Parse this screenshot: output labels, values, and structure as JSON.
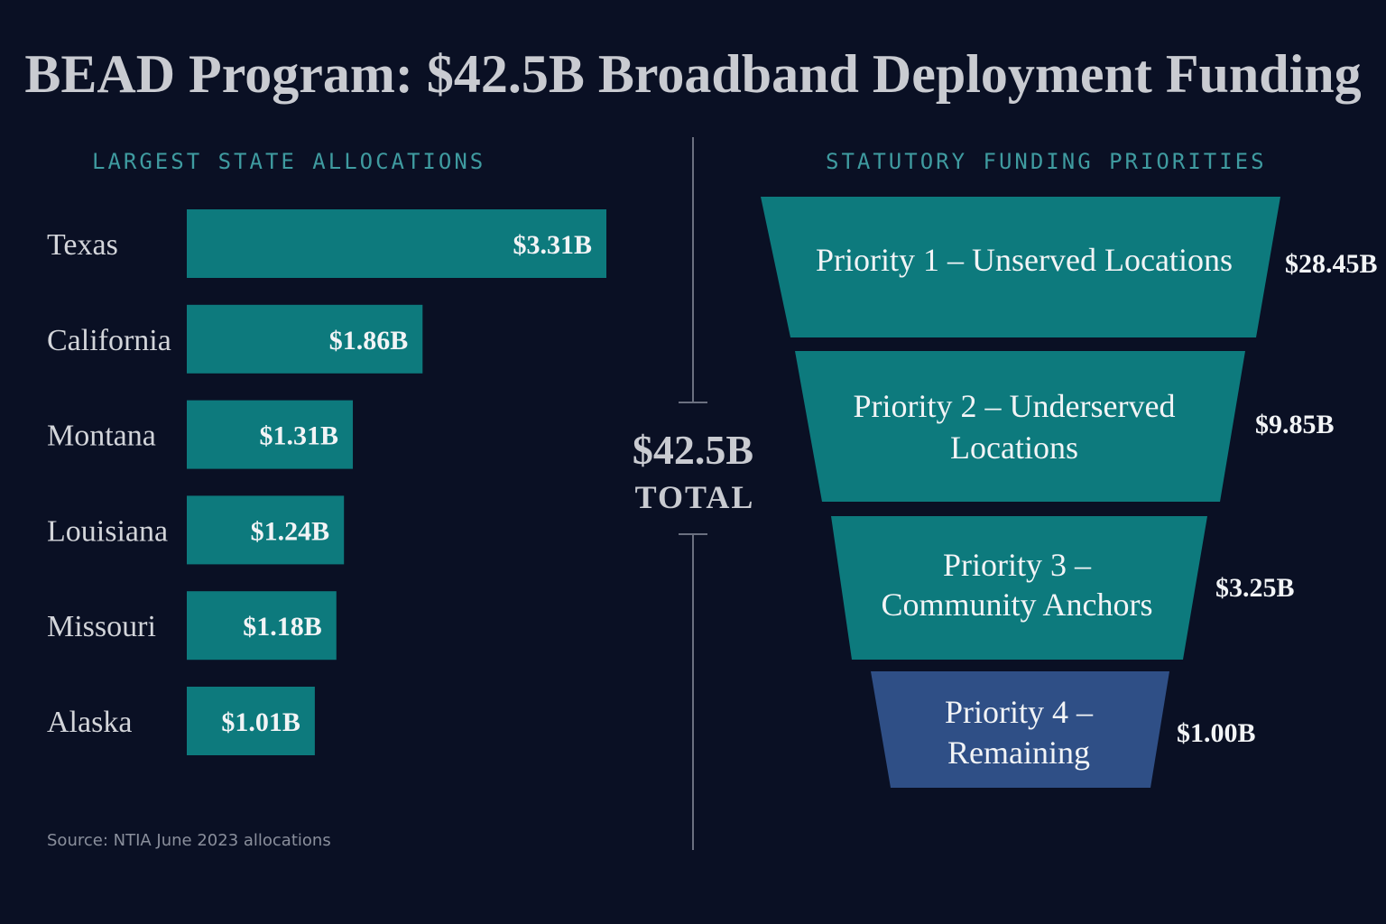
{
  "title": "BEAD Program: $42.5B Broadband Deployment Funding",
  "source": "Source: NTIA June 2023 allocations",
  "total": {
    "value": "$42.5B",
    "label": "TOTAL"
  },
  "colors": {
    "background": "#0a1024",
    "teal": "#0d7a7d",
    "navy": "#2f4f86",
    "label_accent": "#3f9ba0"
  },
  "chart_data": [
    {
      "type": "bar",
      "orientation": "horizontal",
      "title": "LARGEST STATE ALLOCATIONS",
      "categories": [
        "Texas",
        "California",
        "Montana",
        "Louisiana",
        "Missouri",
        "Alaska"
      ],
      "values": [
        3.31,
        1.86,
        1.31,
        1.24,
        1.18,
        1.01
      ],
      "value_labels": [
        "$3.31B",
        "$1.86B",
        "$1.31B",
        "$1.24B",
        "$1.18B",
        "$1.01B"
      ],
      "unit": "$B"
    },
    {
      "type": "funnel",
      "title": "STATUTORY FUNDING PRIORITIES",
      "stages": [
        {
          "label_lines": [
            "Priority 1 – Unserved Locations"
          ],
          "value": 28.45,
          "value_label": "$28.45B",
          "color": "#0d7a7d"
        },
        {
          "label_lines": [
            "Priority 2 – Underserved",
            "Locations"
          ],
          "value": 9.85,
          "value_label": "$9.85B",
          "color": "#0d7a7d"
        },
        {
          "label_lines": [
            "Priority 3 –",
            "Community Anchors"
          ],
          "value": 3.25,
          "value_label": "$3.25B",
          "color": "#0d7a7d"
        },
        {
          "label_lines": [
            "Priority 4 –",
            "Remaining"
          ],
          "value": 1.0,
          "value_label": "$1.00B",
          "color": "#2f4f86"
        }
      ],
      "unit": "$B"
    }
  ]
}
